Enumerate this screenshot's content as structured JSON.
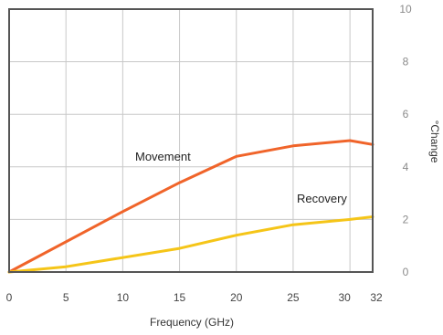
{
  "chart_data": {
    "type": "line",
    "title": "",
    "xlabel": "Frequency (GHz)",
    "ylabel": "°Change",
    "x_ticks": [
      "0",
      "5",
      "10",
      "15",
      "20",
      "25",
      "30",
      "32"
    ],
    "y_ticks": [
      "0",
      "2",
      "4",
      "6",
      "8",
      "10"
    ],
    "xlim": [
      0,
      32
    ],
    "ylim": [
      0,
      10
    ],
    "grid": true,
    "series": [
      {
        "name": "Movement",
        "color": "#f0642a",
        "points": [
          [
            0,
            0
          ],
          [
            10,
            2.3
          ],
          [
            15,
            3.4
          ],
          [
            20,
            4.4
          ],
          [
            25,
            4.8
          ],
          [
            30,
            5.0
          ],
          [
            32,
            4.85
          ]
        ]
      },
      {
        "name": "Recovery",
        "color": "#f5c518",
        "points": [
          [
            0,
            0
          ],
          [
            5,
            0.2
          ],
          [
            15,
            0.9
          ],
          [
            20,
            1.4
          ],
          [
            25,
            1.8
          ],
          [
            30,
            2.0
          ],
          [
            32,
            2.1
          ]
        ]
      }
    ]
  }
}
